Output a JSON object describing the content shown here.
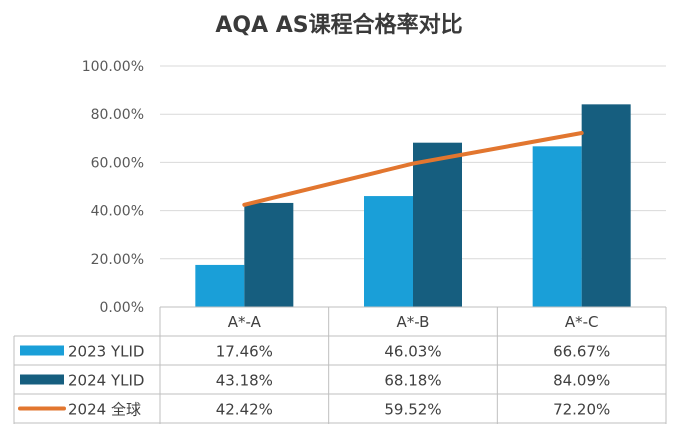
{
  "chart_data": {
    "type": "bar",
    "title": "AQA AS课程合格率对比",
    "categories": [
      "A*-A",
      "A*-B",
      "A*-C"
    ],
    "ylim": [
      0,
      100
    ],
    "y_ticks": [
      "0.00%",
      "20.00%",
      "40.00%",
      "60.00%",
      "80.00%",
      "100.00%"
    ],
    "grid": true,
    "legend_placement": "data-table",
    "series": [
      {
        "name": "2023 YLID",
        "type": "bar",
        "color": "#1a9fd8",
        "values": [
          17.46,
          46.03,
          66.67
        ],
        "labels": [
          "17.46%",
          "46.03%",
          "66.67%"
        ]
      },
      {
        "name": "2024 YLID",
        "type": "bar",
        "color": "#165e7f",
        "values": [
          43.18,
          68.18,
          84.09
        ],
        "labels": [
          "43.18%",
          "68.18%",
          "84.09%"
        ]
      },
      {
        "name": "2024 全球",
        "type": "line",
        "color": "#e2762f",
        "values": [
          42.42,
          59.52,
          72.2
        ],
        "labels": [
          "42.42%",
          "59.52%",
          "72.20%"
        ]
      }
    ]
  }
}
